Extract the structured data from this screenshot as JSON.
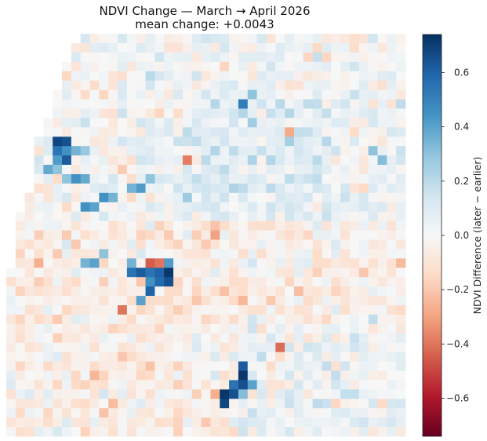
{
  "chart_data": {
    "type": "heatmap",
    "title": "NDVI Change — March → April 2026",
    "subtitle": "mean change: +0.0043",
    "colorbar": {
      "label": "NDVI Difference (later − earlier)",
      "range": [
        -0.74,
        0.74
      ],
      "ticks": [
        0.6,
        0.4,
        0.2,
        0.0,
        -0.2,
        -0.4,
        -0.6
      ],
      "tick_labels": [
        "0.6",
        "0.4",
        "0.2",
        "0.0",
        "−0.2",
        "−0.4",
        "−0.6"
      ],
      "colormap": "RdBu",
      "stops": [
        "#67001f",
        "#b2182b",
        "#d6604d",
        "#f4a582",
        "#fddbc7",
        "#f7f7f7",
        "#d1e5f0",
        "#92c5de",
        "#4393c3",
        "#2166ac",
        "#053061"
      ]
    },
    "grid": {
      "cols": 43,
      "rows": 43
    },
    "hotspots_increase": [
      {
        "row": 11,
        "col": 5,
        "value": 0.68
      },
      {
        "row": 11,
        "col": 6,
        "value": 0.65
      },
      {
        "row": 12,
        "col": 5,
        "value": 0.55
      },
      {
        "row": 12,
        "col": 6,
        "value": 0.45
      },
      {
        "row": 13,
        "col": 5,
        "value": 0.42
      },
      {
        "row": 13,
        "col": 6,
        "value": 0.62
      },
      {
        "row": 12,
        "col": 7,
        "value": 0.35
      },
      {
        "row": 12,
        "col": 8,
        "value": 0.28
      },
      {
        "row": 14,
        "col": 4,
        "value": 0.38
      },
      {
        "row": 14,
        "col": 5,
        "value": 0.3
      },
      {
        "row": 15,
        "col": 7,
        "value": 0.45
      },
      {
        "row": 15,
        "col": 8,
        "value": 0.38
      },
      {
        "row": 16,
        "col": 14,
        "value": 0.42
      },
      {
        "row": 16,
        "col": 13,
        "value": 0.35
      },
      {
        "row": 17,
        "col": 10,
        "value": 0.45
      },
      {
        "row": 17,
        "col": 11,
        "value": 0.35
      },
      {
        "row": 18,
        "col": 8,
        "value": 0.45
      },
      {
        "row": 18,
        "col": 9,
        "value": 0.4
      },
      {
        "row": 15,
        "col": 15,
        "value": 0.3
      },
      {
        "row": 15,
        "col": 6,
        "value": 0.3
      },
      {
        "row": 7,
        "col": 25,
        "value": 0.52
      },
      {
        "row": 6,
        "col": 26,
        "value": 0.3
      },
      {
        "row": 13,
        "col": 40,
        "value": 0.32
      },
      {
        "row": 12,
        "col": 39,
        "value": 0.3
      },
      {
        "row": 24,
        "col": 8,
        "value": 0.35
      },
      {
        "row": 24,
        "col": 9,
        "value": 0.4
      },
      {
        "row": 23,
        "col": 10,
        "value": 0.3
      },
      {
        "row": 24,
        "col": 13,
        "value": 0.35
      },
      {
        "row": 25,
        "col": 13,
        "value": 0.55
      },
      {
        "row": 25,
        "col": 14,
        "value": 0.62
      },
      {
        "row": 25,
        "col": 15,
        "value": 0.55
      },
      {
        "row": 25,
        "col": 16,
        "value": 0.6
      },
      {
        "row": 25,
        "col": 17,
        "value": 0.72
      },
      {
        "row": 26,
        "col": 16,
        "value": 0.58
      },
      {
        "row": 26,
        "col": 17,
        "value": 0.65
      },
      {
        "row": 26,
        "col": 15,
        "value": 0.45
      },
      {
        "row": 27,
        "col": 15,
        "value": 0.6
      },
      {
        "row": 28,
        "col": 14,
        "value": 0.4
      },
      {
        "row": 24,
        "col": 17,
        "value": 0.42
      },
      {
        "row": 35,
        "col": 25,
        "value": 0.62
      },
      {
        "row": 36,
        "col": 25,
        "value": 0.72
      },
      {
        "row": 37,
        "col": 25,
        "value": 0.65
      },
      {
        "row": 37,
        "col": 24,
        "value": 0.55
      },
      {
        "row": 38,
        "col": 24,
        "value": 0.65
      },
      {
        "row": 38,
        "col": 23,
        "value": 0.72
      },
      {
        "row": 39,
        "col": 23,
        "value": 0.68
      },
      {
        "row": 37,
        "col": 26,
        "value": 0.4
      },
      {
        "row": 38,
        "col": 25,
        "value": 0.32
      }
    ],
    "hotspots_decrease": [
      {
        "row": 24,
        "col": 15,
        "value": -0.45
      },
      {
        "row": 24,
        "col": 16,
        "value": -0.4
      },
      {
        "row": 13,
        "col": 19,
        "value": -0.38
      },
      {
        "row": 29,
        "col": 12,
        "value": -0.4
      },
      {
        "row": 33,
        "col": 29,
        "value": -0.42
      },
      {
        "row": 10,
        "col": 30,
        "value": -0.28
      },
      {
        "row": 21,
        "col": 22,
        "value": -0.3
      }
    ]
  }
}
